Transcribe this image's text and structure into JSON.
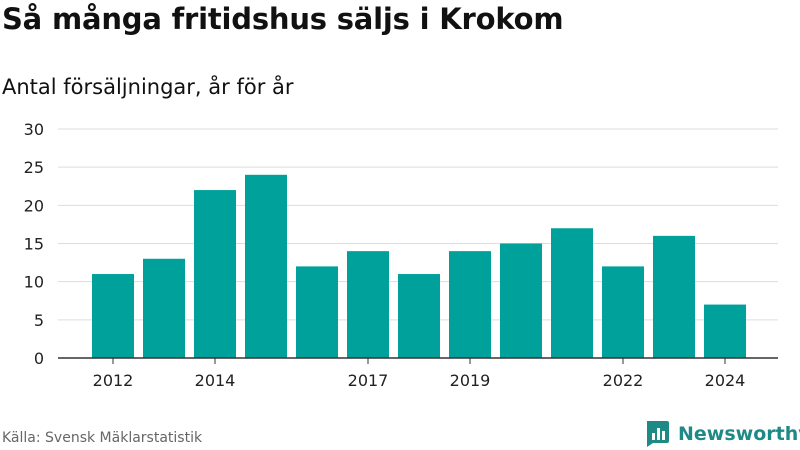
{
  "header": {
    "title": "Så många fritidshus säljs i Krokom",
    "subtitle": "Antal försäljningar, år för år"
  },
  "footer": {
    "source": "Källa: Svensk Mäklarstatistik",
    "brand": "Newsworthy",
    "brand_icon": "bar-chart-logo-icon"
  },
  "colors": {
    "bar": "#00a19a",
    "brand": "#1e8a86",
    "grid": "#dddddd",
    "axis": "#333333"
  },
  "chart_data": {
    "type": "bar",
    "categories": [
      "2012",
      "2013",
      "2014",
      "2015",
      "2016",
      "2017",
      "2018",
      "2019",
      "2020",
      "2021",
      "2022",
      "2023",
      "2024"
    ],
    "x_tick_labels": [
      "2012",
      "2014",
      "2017",
      "2019",
      "2022",
      "2024"
    ],
    "values": [
      11,
      13,
      22,
      24,
      12,
      14,
      11,
      14,
      15,
      17,
      12,
      16,
      7
    ],
    "y_ticks": [
      "0",
      "5",
      "10",
      "15",
      "20",
      "25",
      "30"
    ],
    "ylim": [
      0,
      30
    ],
    "grid": true,
    "legend": false
  }
}
